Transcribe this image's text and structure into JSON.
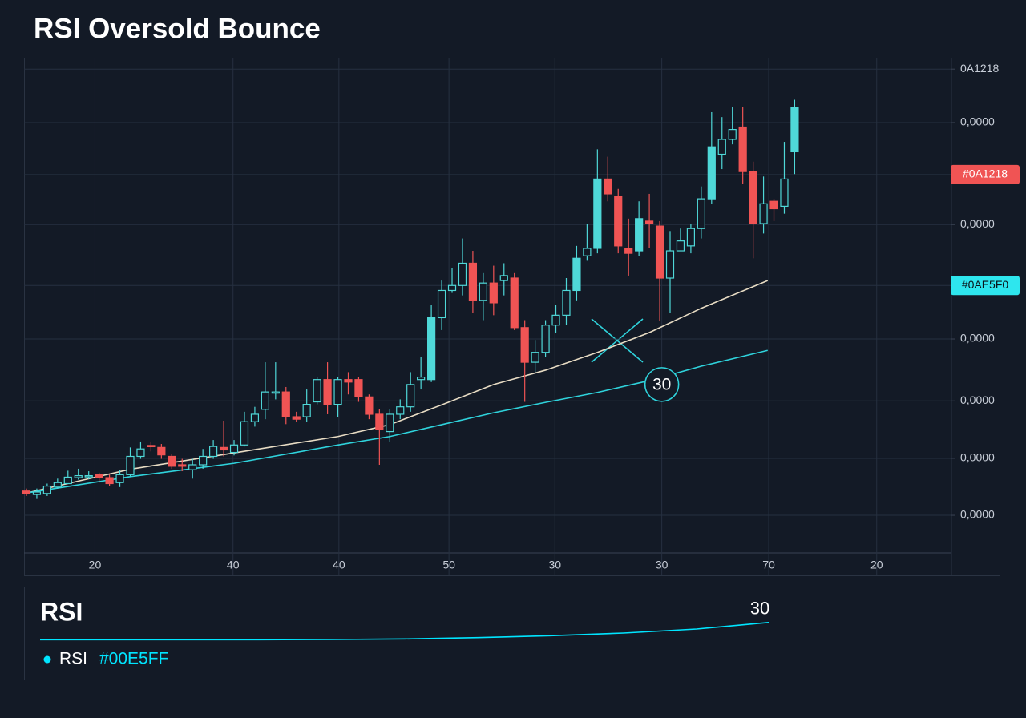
{
  "chart_data": [
    {
      "type": "candlestick",
      "title": "RSI Oversold Bounce",
      "x": [
        0,
        1,
        2,
        3,
        4,
        5,
        6,
        7,
        8,
        9,
        10,
        11,
        12,
        13,
        14,
        15,
        16,
        17,
        18,
        19,
        20,
        21,
        22,
        23,
        24,
        25,
        26,
        27,
        28,
        29,
        30,
        31,
        32,
        33,
        34,
        35,
        36,
        37,
        38,
        39,
        40,
        41,
        42,
        43,
        44,
        45,
        46,
        47,
        48,
        49,
        50,
        51,
        52,
        53,
        54,
        55,
        56,
        57,
        58,
        59,
        60,
        61,
        62,
        63,
        64,
        65,
        66,
        67,
        68,
        69,
        70,
        71,
        72,
        73,
        74
      ],
      "open": [
        12.5,
        11.8,
        12.0,
        13.3,
        14.0,
        15.2,
        15.6,
        15.8,
        15.2,
        14.2,
        15.8,
        19.5,
        21.7,
        21.3,
        19.5,
        17.8,
        16.8,
        17.8,
        19.5,
        21.3,
        20.3,
        21.8,
        26.5,
        29.0,
        32.5,
        32.5,
        27.5,
        27.5,
        30.5,
        35.0,
        30.0,
        35.0,
        35.0,
        31.5,
        28.0,
        24.5,
        28.0,
        29.5,
        35.0,
        35.0,
        47.5,
        53.0,
        54.0,
        58.5,
        51.0,
        54.5,
        55.0,
        55.5,
        45.5,
        38.5,
        40.5,
        46.0,
        48.0,
        53.0,
        60.0,
        61.5,
        75.5,
        72.0,
        61.5,
        61.0,
        67.0,
        66.0,
        55.5,
        61.0,
        62.0,
        65.5,
        71.5,
        80.5,
        83.5,
        86.0,
        77.0,
        66.5,
        71.0,
        70.0,
        81.0
      ],
      "high": [
        13.0,
        13.0,
        14.0,
        15.0,
        16.6,
        17.0,
        16.5,
        16.2,
        15.8,
        16.8,
        21.3,
        22.5,
        22.5,
        22.0,
        20.0,
        19.0,
        19.0,
        21.0,
        22.8,
        26.7,
        22.8,
        28.5,
        29.5,
        38.5,
        38.5,
        33.5,
        28.5,
        33.0,
        35.5,
        38.5,
        35.5,
        36.5,
        35.5,
        32.0,
        29.0,
        29.0,
        31.0,
        36.5,
        39.5,
        50.0,
        55.0,
        57.5,
        63.5,
        61.0,
        56.5,
        58.0,
        58.5,
        56.5,
        47.0,
        43.0,
        47.0,
        50.0,
        55.5,
        62.0,
        66.5,
        81.5,
        80.0,
        73.5,
        67.5,
        71.0,
        72.5,
        67.0,
        65.0,
        65.5,
        66.5,
        74.0,
        89.0,
        88.0,
        90.0,
        90.0,
        79.0,
        76.0,
        71.5,
        83.0,
        91.5
      ],
      "low": [
        11.5,
        10.9,
        11.5,
        13.0,
        14.0,
        14.8,
        14.9,
        14.2,
        13.5,
        13.3,
        15.5,
        19.0,
        20.5,
        19.0,
        17.0,
        16.5,
        15.0,
        17.0,
        19.0,
        19.5,
        19.7,
        21.5,
        25.5,
        27.0,
        31.0,
        26.0,
        26.5,
        26.5,
        30.0,
        28.0,
        27.5,
        32.0,
        30.5,
        27.0,
        17.8,
        22.5,
        27.0,
        28.5,
        33.0,
        34.5,
        45.0,
        52.5,
        52.0,
        48.5,
        47.0,
        48.0,
        52.0,
        45.0,
        30.5,
        36.5,
        39.5,
        44.5,
        46.0,
        51.0,
        59.0,
        60.5,
        71.0,
        60.5,
        56.0,
        60.0,
        61.5,
        46.8,
        48.5,
        61.0,
        60.5,
        63.5,
        70.5,
        77.5,
        82.5,
        74.5,
        59.5,
        64.5,
        67.0,
        68.5,
        76.5
      ],
      "close": [
        12.0,
        12.3,
        13.5,
        14.2,
        15.3,
        15.6,
        15.6,
        15.2,
        14.0,
        15.8,
        19.5,
        21.0,
        21.5,
        19.8,
        17.5,
        17.5,
        17.8,
        19.5,
        21.5,
        20.8,
        21.8,
        26.5,
        28.0,
        32.5,
        32.5,
        27.5,
        27.0,
        30.0,
        35.0,
        30.0,
        35.0,
        34.5,
        31.5,
        28.0,
        25.0,
        28.0,
        29.5,
        34.0,
        35.5,
        47.5,
        53.0,
        54.0,
        58.5,
        51.0,
        54.5,
        50.5,
        56.0,
        45.5,
        38.5,
        40.5,
        46.0,
        48.0,
        53.0,
        59.5,
        61.5,
        75.5,
        72.5,
        62.0,
        60.5,
        67.5,
        66.5,
        55.5,
        61.0,
        63.0,
        65.5,
        71.5,
        82.0,
        83.5,
        85.5,
        77.0,
        66.5,
        70.5,
        69.5,
        75.5,
        90.0
      ],
      "up_color": "#4fd8d8",
      "down_color": "#f05454",
      "lines": [
        {
          "color": "#e8dcc4",
          "x": [
            0,
            10,
            20,
            30,
            35,
            40,
            45,
            50,
            55,
            60,
            65,
            71.4
          ],
          "values": [
            12.1,
            16.9,
            20.2,
            23.5,
            25.9,
            29.9,
            34.0,
            36.9,
            40.5,
            44.5,
            49.4,
            55.0
          ]
        },
        {
          "color": "#2fd3dc",
          "x": [
            0,
            10,
            20,
            30,
            35,
            40,
            45,
            50,
            55,
            60,
            65,
            71.4
          ],
          "values": [
            12.1,
            15.4,
            18.1,
            21.8,
            23.5,
            25.9,
            28.3,
            30.4,
            32.4,
            34.8,
            37.7,
            40.9
          ]
        }
      ],
      "xlim": [
        -0.23,
        89.1
      ],
      "xticks": [
        {
          "value": 6.6,
          "label": "20"
        },
        {
          "value": 19.9,
          "label": "40"
        },
        {
          "value": 30.1,
          "label": "40"
        },
        {
          "value": 40.7,
          "label": "50"
        },
        {
          "value": 50.9,
          "label": "30"
        },
        {
          "value": 61.2,
          "label": "30"
        },
        {
          "value": 71.5,
          "label": "70"
        },
        {
          "value": 81.9,
          "label": "20"
        }
      ],
      "ylim": [
        0,
        100
      ],
      "yticks": [
        {
          "value": 97.7,
          "label": "0A1218"
        },
        {
          "value": 86.9,
          "label": "0,0000"
        },
        {
          "value": 66.3,
          "label": "0,0000"
        },
        {
          "value": 43.2,
          "label": "0,0000"
        },
        {
          "value": 30.7,
          "label": "0,0000"
        },
        {
          "value": 19.1,
          "label": "0,0000"
        },
        {
          "value": 7.6,
          "label": "0,0000"
        }
      ],
      "price_tags": [
        {
          "value": 76.4,
          "label": "#0A1218",
          "color": "#f05454"
        },
        {
          "value": 54.0,
          "label": "#0AE5F0",
          "color": "#2ee6ee"
        }
      ],
      "annotations": [
        {
          "text": "30",
          "x": 61.2,
          "y": 34.0
        }
      ],
      "grid": true
    },
    {
      "type": "line",
      "title": "RSI",
      "series": [
        {
          "name": "RSI",
          "color": "#00E5FF",
          "values": [
            23.5,
            23.5,
            23.5,
            23.5,
            23.6,
            23.8,
            24.3,
            25.0,
            26.0,
            27.5,
            30
          ]
        }
      ],
      "ylim": [
        20,
        32
      ]
    }
  ]
}
